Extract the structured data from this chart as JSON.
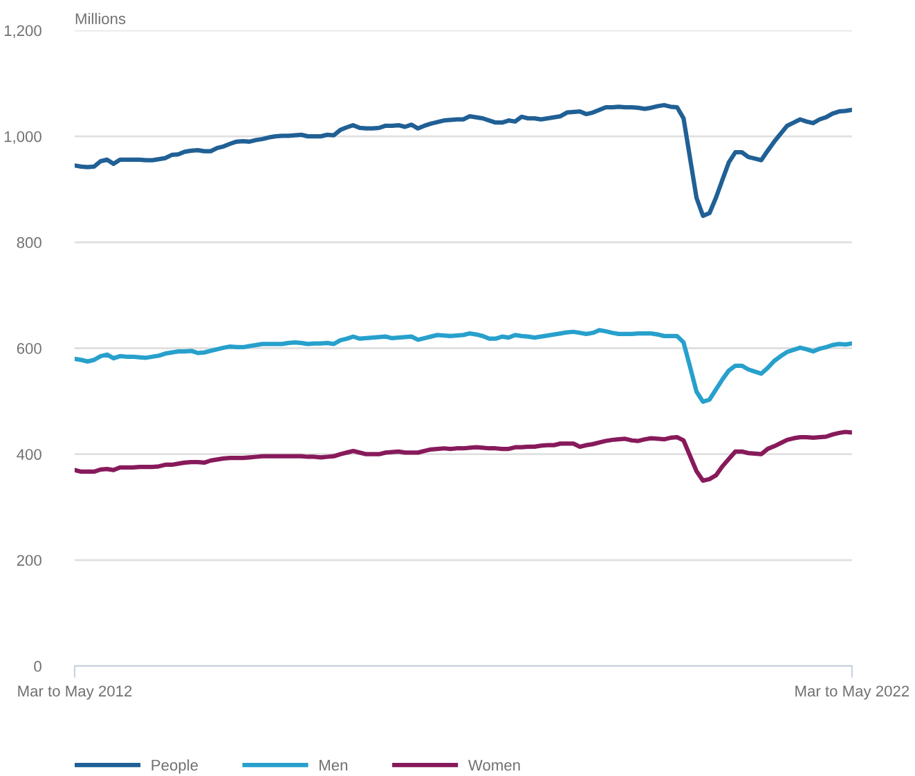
{
  "chart_data": {
    "type": "line",
    "ylabel": "Millions",
    "categories": [
      "Mar to May 2012",
      null,
      null,
      null,
      null,
      null,
      null,
      null,
      null,
      null,
      null,
      null,
      null,
      null,
      null,
      null,
      null,
      null,
      null,
      null,
      null,
      null,
      null,
      null,
      null,
      null,
      null,
      null,
      null,
      null,
      null,
      null,
      null,
      null,
      null,
      null,
      null,
      null,
      null,
      null,
      null,
      null,
      null,
      null,
      null,
      null,
      null,
      null,
      null,
      null,
      null,
      null,
      null,
      null,
      null,
      null,
      null,
      null,
      null,
      null,
      null,
      null,
      null,
      null,
      null,
      null,
      null,
      null,
      null,
      null,
      null,
      null,
      null,
      null,
      null,
      null,
      null,
      null,
      null,
      null,
      null,
      null,
      null,
      null,
      null,
      null,
      null,
      null,
      null,
      null,
      null,
      null,
      null,
      null,
      null,
      null,
      null,
      null,
      null,
      null,
      null,
      null,
      null,
      null,
      null,
      null,
      null,
      null,
      null,
      null,
      null,
      null,
      null,
      null,
      null,
      null,
      null,
      null,
      null,
      null,
      "Mar to May 2022"
    ],
    "ylim": [
      0,
      1200
    ],
    "yticks": [
      0,
      200,
      400,
      600,
      800,
      {
        "value": 1000,
        "label": "1,000"
      },
      {
        "value": 1200,
        "label": "1,200"
      }
    ],
    "grid": "y",
    "legend": "bottom",
    "marker": "none",
    "line_style": "solid",
    "series": [
      {
        "name": "People",
        "color": "#206095",
        "values": [
          945,
          943,
          942,
          943,
          953,
          956,
          948,
          956,
          956,
          956,
          956,
          955,
          955,
          957,
          959,
          965,
          966,
          971,
          973,
          974,
          972,
          972,
          978,
          981,
          986,
          990,
          991,
          990,
          993,
          995,
          998,
          1000,
          1001,
          1001,
          1002,
          1003,
          1000,
          1000,
          1000,
          1003,
          1002,
          1012,
          1017,
          1021,
          1016,
          1015,
          1015,
          1016,
          1020,
          1020,
          1021,
          1018,
          1022,
          1015,
          1020,
          1024,
          1027,
          1030,
          1031,
          1032,
          1032,
          1038,
          1036,
          1034,
          1030,
          1026,
          1026,
          1030,
          1028,
          1037,
          1034,
          1034,
          1032,
          1034,
          1036,
          1038,
          1045,
          1046,
          1047,
          1042,
          1045,
          1050,
          1055,
          1055,
          1056,
          1055,
          1055,
          1054,
          1052,
          1054,
          1057,
          1059,
          1056,
          1055,
          1034,
          959,
          884,
          850,
          855,
          884,
          918,
          951,
          970,
          970,
          961,
          958,
          955,
          973,
          990,
          1005,
          1020,
          1026,
          1032,
          1028,
          1025,
          1032,
          1036,
          1043,
          1047,
          1048,
          1050
        ]
      },
      {
        "name": "Men",
        "color": "#27a0cc",
        "values": [
          580,
          578,
          575,
          578,
          585,
          588,
          581,
          585,
          584,
          584,
          583,
          582,
          584,
          586,
          590,
          592,
          594,
          594,
          595,
          591,
          592,
          595,
          598,
          601,
          603,
          602,
          602,
          604,
          606,
          608,
          608,
          608,
          608,
          610,
          611,
          610,
          608,
          609,
          609,
          610,
          608,
          615,
          618,
          622,
          618,
          619,
          620,
          621,
          622,
          619,
          620,
          621,
          622,
          616,
          619,
          622,
          625,
          624,
          623,
          624,
          625,
          628,
          626,
          623,
          618,
          618,
          622,
          620,
          625,
          623,
          622,
          620,
          622,
          624,
          626,
          628,
          630,
          631,
          629,
          627,
          629,
          634,
          632,
          629,
          627,
          627,
          627,
          628,
          628,
          628,
          626,
          623,
          623,
          623,
          611,
          565,
          518,
          499,
          503,
          522,
          541,
          558,
          567,
          567,
          560,
          556,
          552,
          563,
          576,
          585,
          593,
          597,
          601,
          598,
          594,
          599,
          602,
          606,
          608,
          607,
          609
        ]
      },
      {
        "name": "Women",
        "color": "#871a5b",
        "values": [
          370,
          367,
          367,
          367,
          371,
          372,
          370,
          375,
          375,
          375,
          376,
          376,
          376,
          377,
          380,
          380,
          382,
          384,
          385,
          385,
          384,
          388,
          390,
          392,
          393,
          393,
          393,
          394,
          395,
          396,
          396,
          396,
          396,
          396,
          396,
          396,
          395,
          395,
          394,
          395,
          396,
          400,
          403,
          406,
          403,
          400,
          400,
          400,
          403,
          404,
          405,
          403,
          403,
          403,
          406,
          409,
          410,
          411,
          410,
          411,
          411,
          412,
          413,
          412,
          411,
          411,
          410,
          410,
          413,
          413,
          414,
          414,
          416,
          417,
          417,
          420,
          420,
          420,
          414,
          417,
          419,
          422,
          425,
          427,
          428,
          429,
          426,
          425,
          428,
          430,
          429,
          428,
          431,
          432,
          426,
          397,
          368,
          350,
          353,
          360,
          377,
          391,
          405,
          405,
          402,
          401,
          400,
          410,
          415,
          421,
          427,
          430,
          432,
          432,
          431,
          432,
          433,
          437,
          440,
          442,
          441
        ]
      }
    ]
  }
}
